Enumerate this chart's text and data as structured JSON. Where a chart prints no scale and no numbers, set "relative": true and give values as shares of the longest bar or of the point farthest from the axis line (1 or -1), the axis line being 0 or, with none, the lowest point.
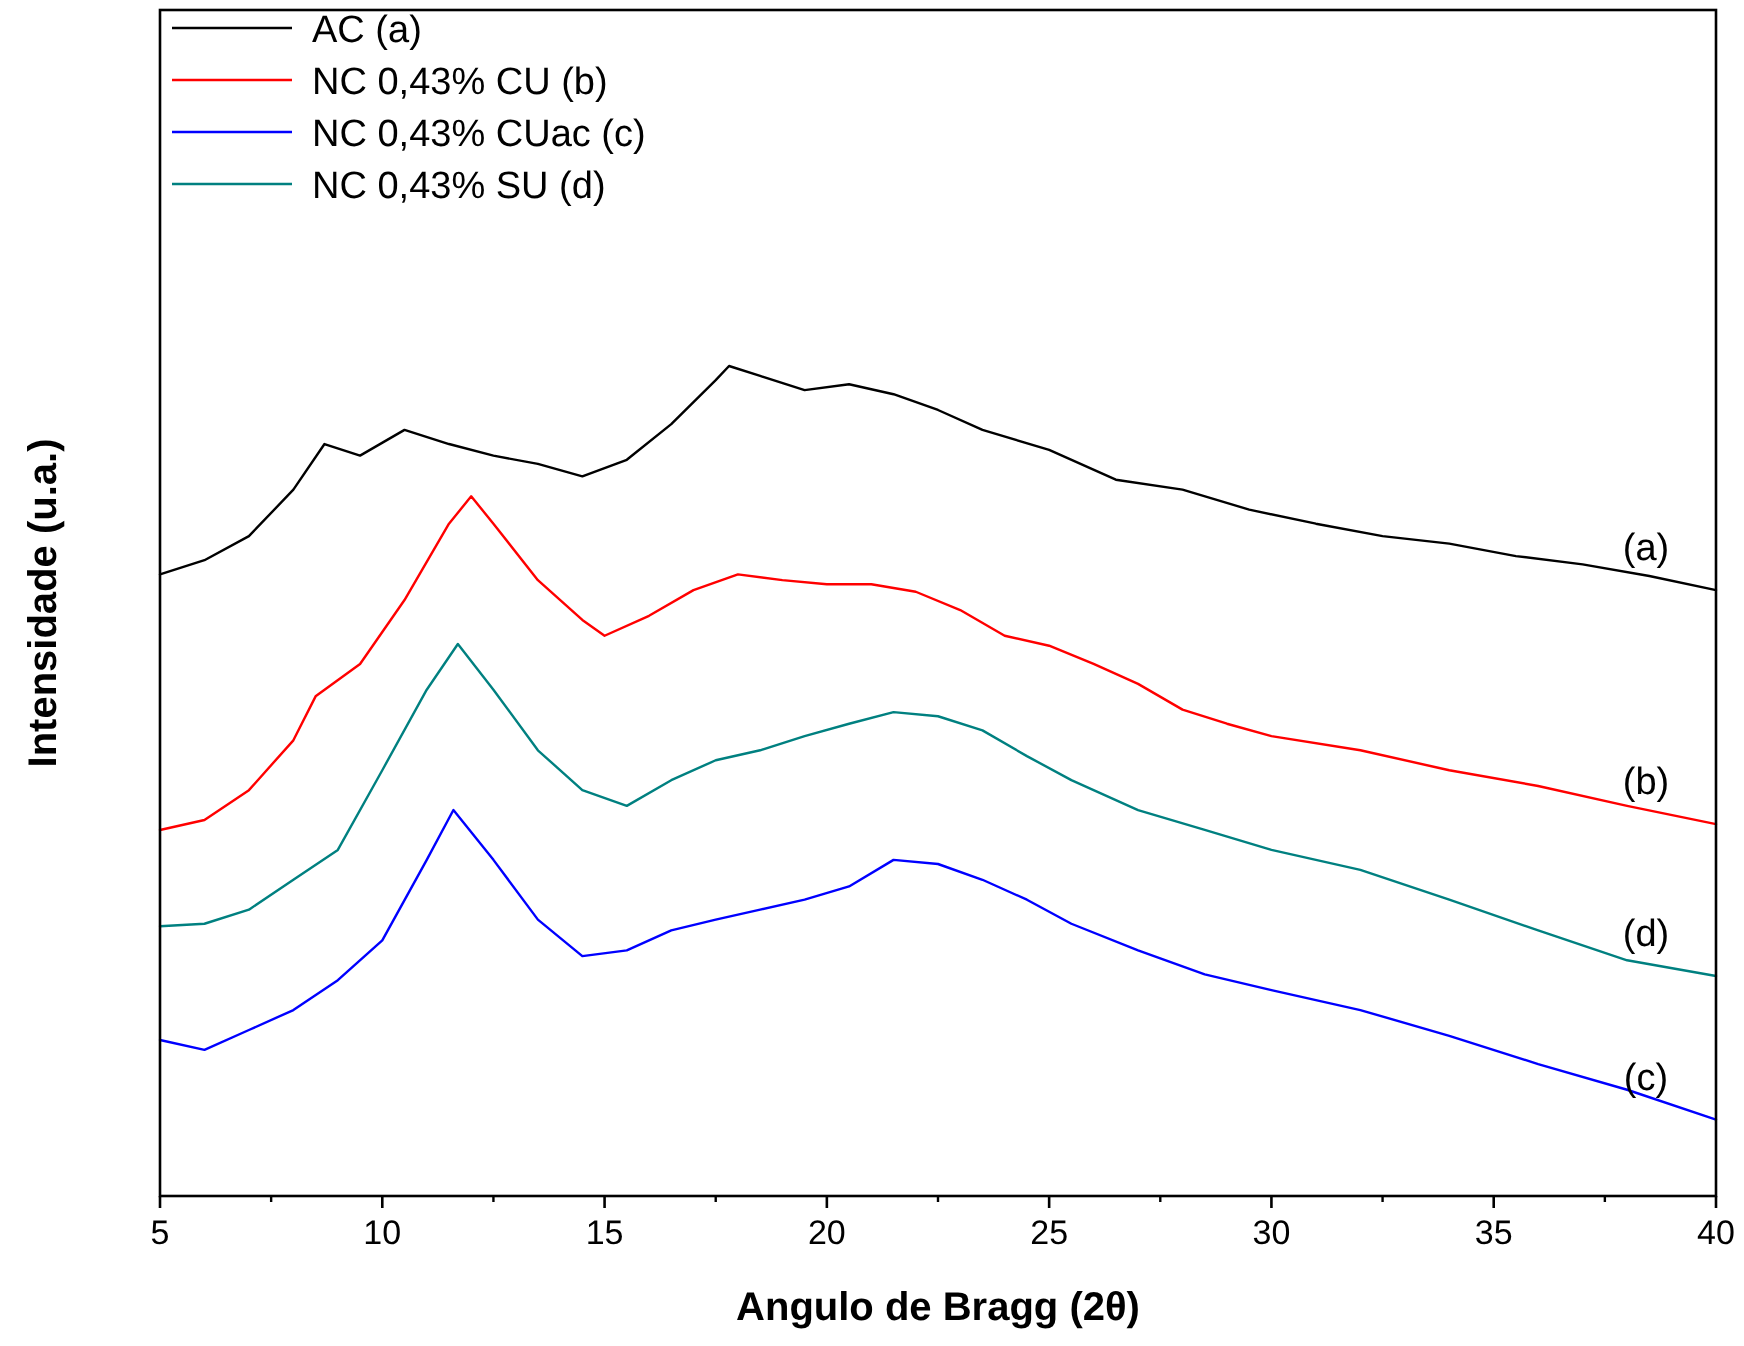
{
  "chart_data": {
    "type": "line",
    "relative": true,
    "xlabel": "Angulo de Bragg (2θ)",
    "ylabel": "Intensidade (u.a.)",
    "xlim": [
      5,
      40
    ],
    "xticks": [
      5,
      10,
      15,
      20,
      25,
      30,
      35,
      40
    ],
    "legend": "top left",
    "tick_labels": "x",
    "series": [
      {
        "name": "AC (a)",
        "color": "#000000",
        "x": [
          5,
          6,
          7,
          8,
          8.7,
          9.5,
          10.5,
          11.5,
          12.5,
          13.5,
          14.5,
          15.5,
          16.5,
          17.5,
          17.8,
          18.5,
          19.5,
          20.5,
          21.5,
          22.5,
          23.5,
          25,
          26.5,
          28,
          29.5,
          31,
          32.5,
          34,
          35.5,
          37,
          38.5,
          40
        ],
        "values": [
          0.749,
          0.766,
          0.795,
          0.851,
          0.906,
          0.892,
          0.923,
          0.906,
          0.892,
          0.882,
          0.867,
          0.887,
          0.93,
          0.983,
          1,
          0.988,
          0.971,
          0.978,
          0.966,
          0.947,
          0.923,
          0.899,
          0.863,
          0.851,
          0.827,
          0.81,
          0.795,
          0.786,
          0.771,
          0.761,
          0.747,
          0.73
        ]
      },
      {
        "name": "NC 0,43% CU (b)",
        "color": "#ff0000",
        "x": [
          5,
          6,
          7,
          8,
          8.5,
          9.5,
          10.5,
          11.5,
          12,
          12.5,
          13.5,
          14.5,
          15,
          16,
          17,
          18,
          19,
          20,
          21,
          22,
          23,
          24,
          25,
          26,
          27,
          28,
          29,
          30,
          32,
          34,
          36,
          38,
          40
        ],
        "values": [
          0.441,
          0.453,
          0.489,
          0.549,
          0.602,
          0.641,
          0.718,
          0.81,
          0.843,
          0.81,
          0.742,
          0.694,
          0.675,
          0.699,
          0.73,
          0.749,
          0.742,
          0.737,
          0.737,
          0.728,
          0.706,
          0.675,
          0.663,
          0.641,
          0.617,
          0.586,
          0.569,
          0.554,
          0.537,
          0.513,
          0.494,
          0.47,
          0.448
        ]
      },
      {
        "name": "NC 0,43% CUac (c)",
        "color": "#0000ff",
        "x": [
          5,
          6,
          7,
          8,
          9,
          10,
          11,
          11.6,
          12.5,
          13.5,
          14.5,
          15.5,
          16.5,
          17.5,
          18.5,
          19.5,
          20.5,
          21.5,
          22.5,
          23.5,
          24.5,
          25.5,
          27,
          28.5,
          30,
          32,
          34,
          36,
          38,
          40
        ],
        "values": [
          0.188,
          0.176,
          0.2,
          0.224,
          0.26,
          0.308,
          0.405,
          0.465,
          0.405,
          0.333,
          0.289,
          0.296,
          0.32,
          0.333,
          0.345,
          0.357,
          0.373,
          0.405,
          0.4,
          0.381,
          0.357,
          0.328,
          0.296,
          0.267,
          0.248,
          0.224,
          0.193,
          0.159,
          0.128,
          0.092
        ]
      },
      {
        "name": "NC 0,43% SU (d)",
        "color": "#008080",
        "x": [
          5,
          6,
          7,
          8,
          9,
          10,
          11,
          11.7,
          12.5,
          13.5,
          14.5,
          15.5,
          16.5,
          17.5,
          18.5,
          19.5,
          20.5,
          21.5,
          22.5,
          23.5,
          24.5,
          25.5,
          27,
          28.5,
          30,
          32,
          34,
          36,
          38,
          40
        ],
        "values": [
          0.325,
          0.328,
          0.345,
          0.381,
          0.417,
          0.513,
          0.61,
          0.665,
          0.61,
          0.537,
          0.489,
          0.47,
          0.501,
          0.525,
          0.537,
          0.554,
          0.569,
          0.583,
          0.578,
          0.561,
          0.53,
          0.501,
          0.465,
          0.441,
          0.417,
          0.393,
          0.357,
          0.32,
          0.284,
          0.265
        ]
      }
    ],
    "annotations": [
      "(a)",
      "(b)",
      "(d)",
      "(c)"
    ]
  }
}
